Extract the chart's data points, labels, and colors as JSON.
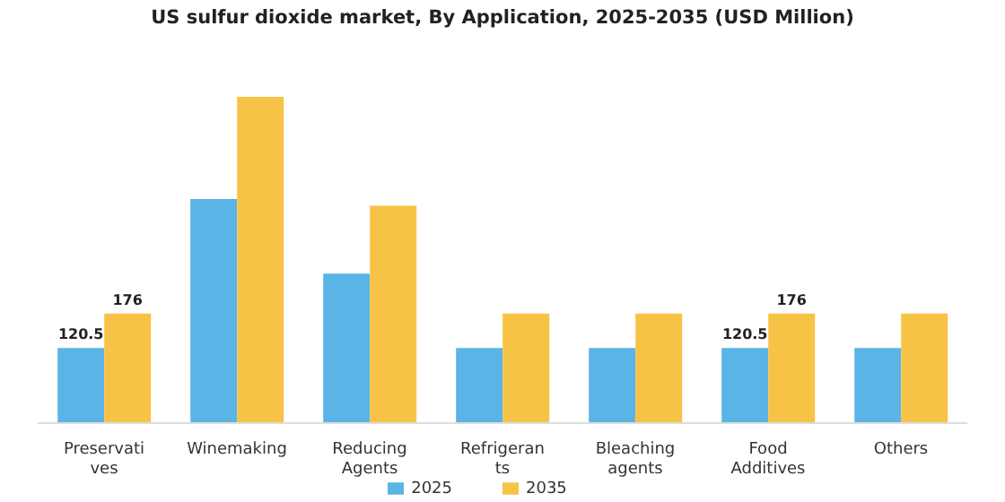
{
  "chart_data": {
    "type": "bar",
    "title": "US sulfur dioxide market, By Application, 2025-2035 (USD Million)",
    "categories": [
      "Preservatives",
      "Winemaking",
      "Reducing Agents",
      "Refrigerants",
      "Bleaching agents",
      "Food Additives",
      "Others"
    ],
    "series": [
      {
        "name": "2025",
        "color": "#5ab4e5",
        "values": [
          120.5,
          360,
          240,
          120.5,
          120.5,
          120.5,
          120.5
        ],
        "value_labels": [
          "120.5",
          null,
          null,
          null,
          null,
          "120.5",
          null
        ]
      },
      {
        "name": "2035",
        "color": "#f7c346",
        "values": [
          176,
          524,
          349,
          176,
          176,
          176,
          176
        ],
        "value_labels": [
          "176",
          null,
          null,
          null,
          null,
          "176",
          null
        ]
      }
    ],
    "legend": "bottom",
    "grid": false
  }
}
